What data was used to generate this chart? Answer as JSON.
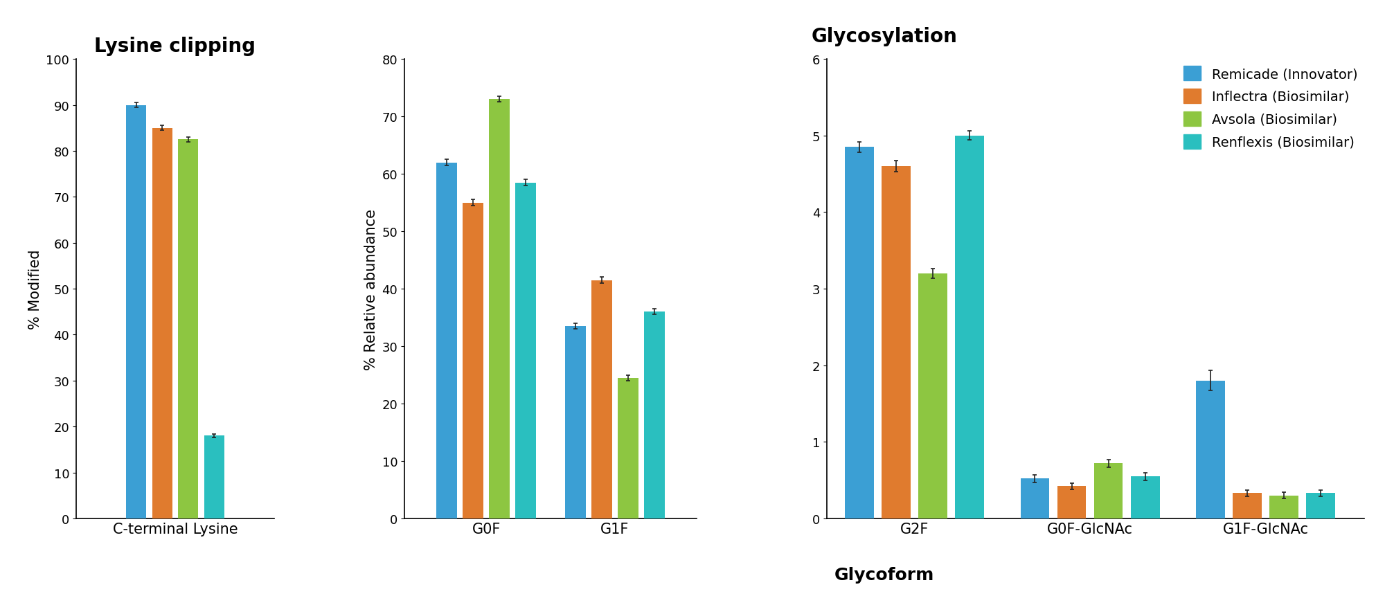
{
  "lysine": {
    "title": "Lysine clipping",
    "ylabel": "% Modified",
    "xlabel": "C-terminal Lysine",
    "ylim": [
      0,
      100
    ],
    "yticks": [
      0,
      10,
      20,
      30,
      40,
      50,
      60,
      70,
      80,
      90,
      100
    ],
    "values": [
      90.0,
      85.0,
      82.5,
      18.0
    ],
    "errors": [
      0.5,
      0.5,
      0.5,
      0.4
    ]
  },
  "glyco_large": {
    "ylabel": "% Relative abundance",
    "ylim": [
      0,
      80
    ],
    "yticks": [
      0,
      10,
      20,
      30,
      40,
      50,
      60,
      70,
      80
    ],
    "categories": [
      "G0F",
      "G1F"
    ],
    "values": {
      "G0F": [
        62.0,
        55.0,
        73.0,
        58.5
      ],
      "G1F": [
        33.5,
        41.5,
        24.5,
        36.0
      ]
    },
    "errors": {
      "G0F": [
        0.5,
        0.5,
        0.5,
        0.5
      ],
      "G1F": [
        0.5,
        0.5,
        0.5,
        0.5
      ]
    }
  },
  "glyco_small": {
    "ylim": [
      0,
      6
    ],
    "yticks": [
      0,
      1,
      2,
      3,
      4,
      5,
      6
    ],
    "categories": [
      "G2F",
      "G0F-GlcNAc",
      "G1F-GlcNAc"
    ],
    "values": {
      "G2F": [
        4.85,
        4.6,
        3.2,
        5.0
      ],
      "G0F-GlcNAc": [
        0.52,
        0.42,
        0.72,
        0.55
      ],
      "G1F-GlcNAc": [
        1.8,
        0.33,
        0.3,
        0.33
      ]
    },
    "errors": {
      "G2F": [
        0.07,
        0.07,
        0.06,
        0.06
      ],
      "G0F-GlcNAc": [
        0.05,
        0.04,
        0.05,
        0.05
      ],
      "G1F-GlcNAc": [
        0.13,
        0.04,
        0.04,
        0.04
      ]
    }
  },
  "colors": [
    "#3B9FD4",
    "#E07B2E",
    "#8DC641",
    "#2ABFBF"
  ],
  "legend_labels": [
    "Remicade (Innovator)",
    "Inflectra (Biosimilar)",
    "Avsola (Biosimilar)",
    "Renflexis (Biosimilar)"
  ],
  "glyco_title": "Glycosylation",
  "glycoform_xlabel": "Glycoform",
  "title_fontsize": 20,
  "axis_label_fontsize": 15,
  "tick_fontsize": 13,
  "legend_fontsize": 14,
  "xlabel_bold_fontsize": 18
}
